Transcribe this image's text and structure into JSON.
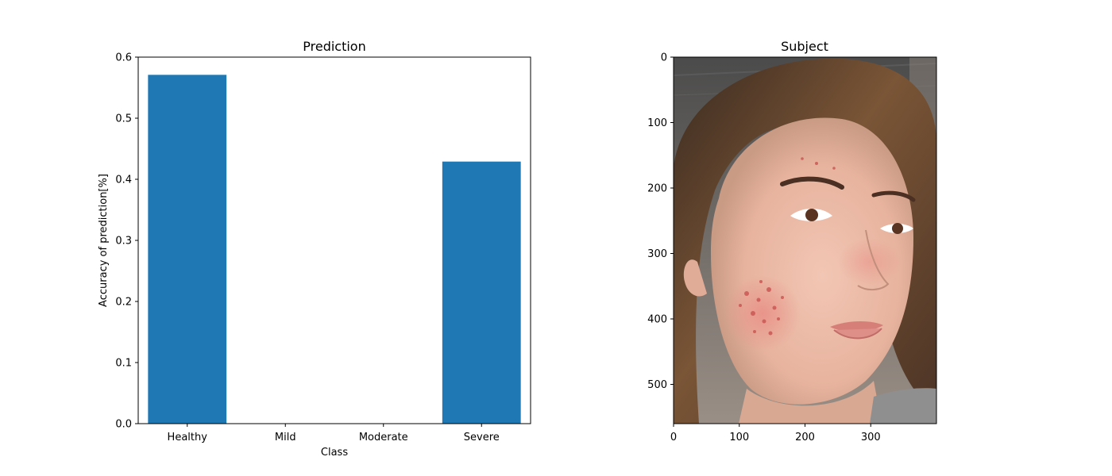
{
  "chart_data": [
    {
      "type": "bar",
      "title": "Prediction",
      "xlabel": "Class",
      "ylabel": "Accuracy of prediction[%]",
      "categories": [
        "Healthy",
        "Mild",
        "Moderate",
        "Severe"
      ],
      "values": [
        0.571,
        0.0,
        0.0,
        0.429
      ],
      "ylim": [
        0,
        0.6
      ],
      "yticks": [
        "0.0",
        "0.1",
        "0.2",
        "0.3",
        "0.4",
        "0.5",
        "0.6"
      ],
      "bar_color": "#1f77b4",
      "grid": false,
      "legend": "none"
    },
    {
      "type": "image",
      "title": "Subject",
      "image_content": "photo of a face with acne",
      "xlim": [
        0,
        400
      ],
      "ylim": [
        560,
        0
      ],
      "xticks": [
        "0",
        "100",
        "200",
        "300"
      ],
      "yticks": [
        "0",
        "100",
        "200",
        "300",
        "400",
        "500"
      ]
    }
  ]
}
